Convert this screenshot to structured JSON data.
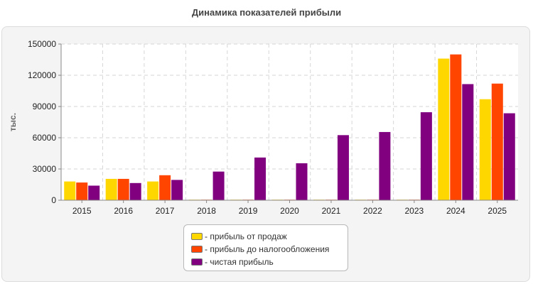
{
  "chart_data": {
    "type": "bar",
    "title": "Динамика показателей прибыли",
    "ylabel": "тыс.",
    "xlabel": "",
    "categories": [
      "2015",
      "2016",
      "2017",
      "2018",
      "2019",
      "2020",
      "2021",
      "2022",
      "2023",
      "2024",
      "2025"
    ],
    "ylim": [
      0,
      150000
    ],
    "yticks": [
      "0",
      "30000",
      "60000",
      "90000",
      "120000",
      "150000"
    ],
    "ytick_values": [
      0,
      30000,
      60000,
      90000,
      120000,
      150000
    ],
    "grid": true,
    "legend_position": "bottom",
    "series": [
      {
        "name": "- прибыль от продаж",
        "color": "#ffd700",
        "values": [
          18000,
          20500,
          18000,
          500,
          500,
          500,
          500,
          500,
          500,
          136000,
          97000
        ]
      },
      {
        "name": "- прибыль до налогообложения",
        "color": "#ff4500",
        "values": [
          17000,
          20500,
          24000,
          500,
          500,
          500,
          500,
          500,
          500,
          140000,
          112000
        ]
      },
      {
        "name": "- чистая прибыль",
        "color": "#800080",
        "values": [
          14000,
          16500,
          19500,
          27500,
          41000,
          35500,
          62500,
          65500,
          84500,
          111500,
          83500
        ]
      }
    ]
  }
}
